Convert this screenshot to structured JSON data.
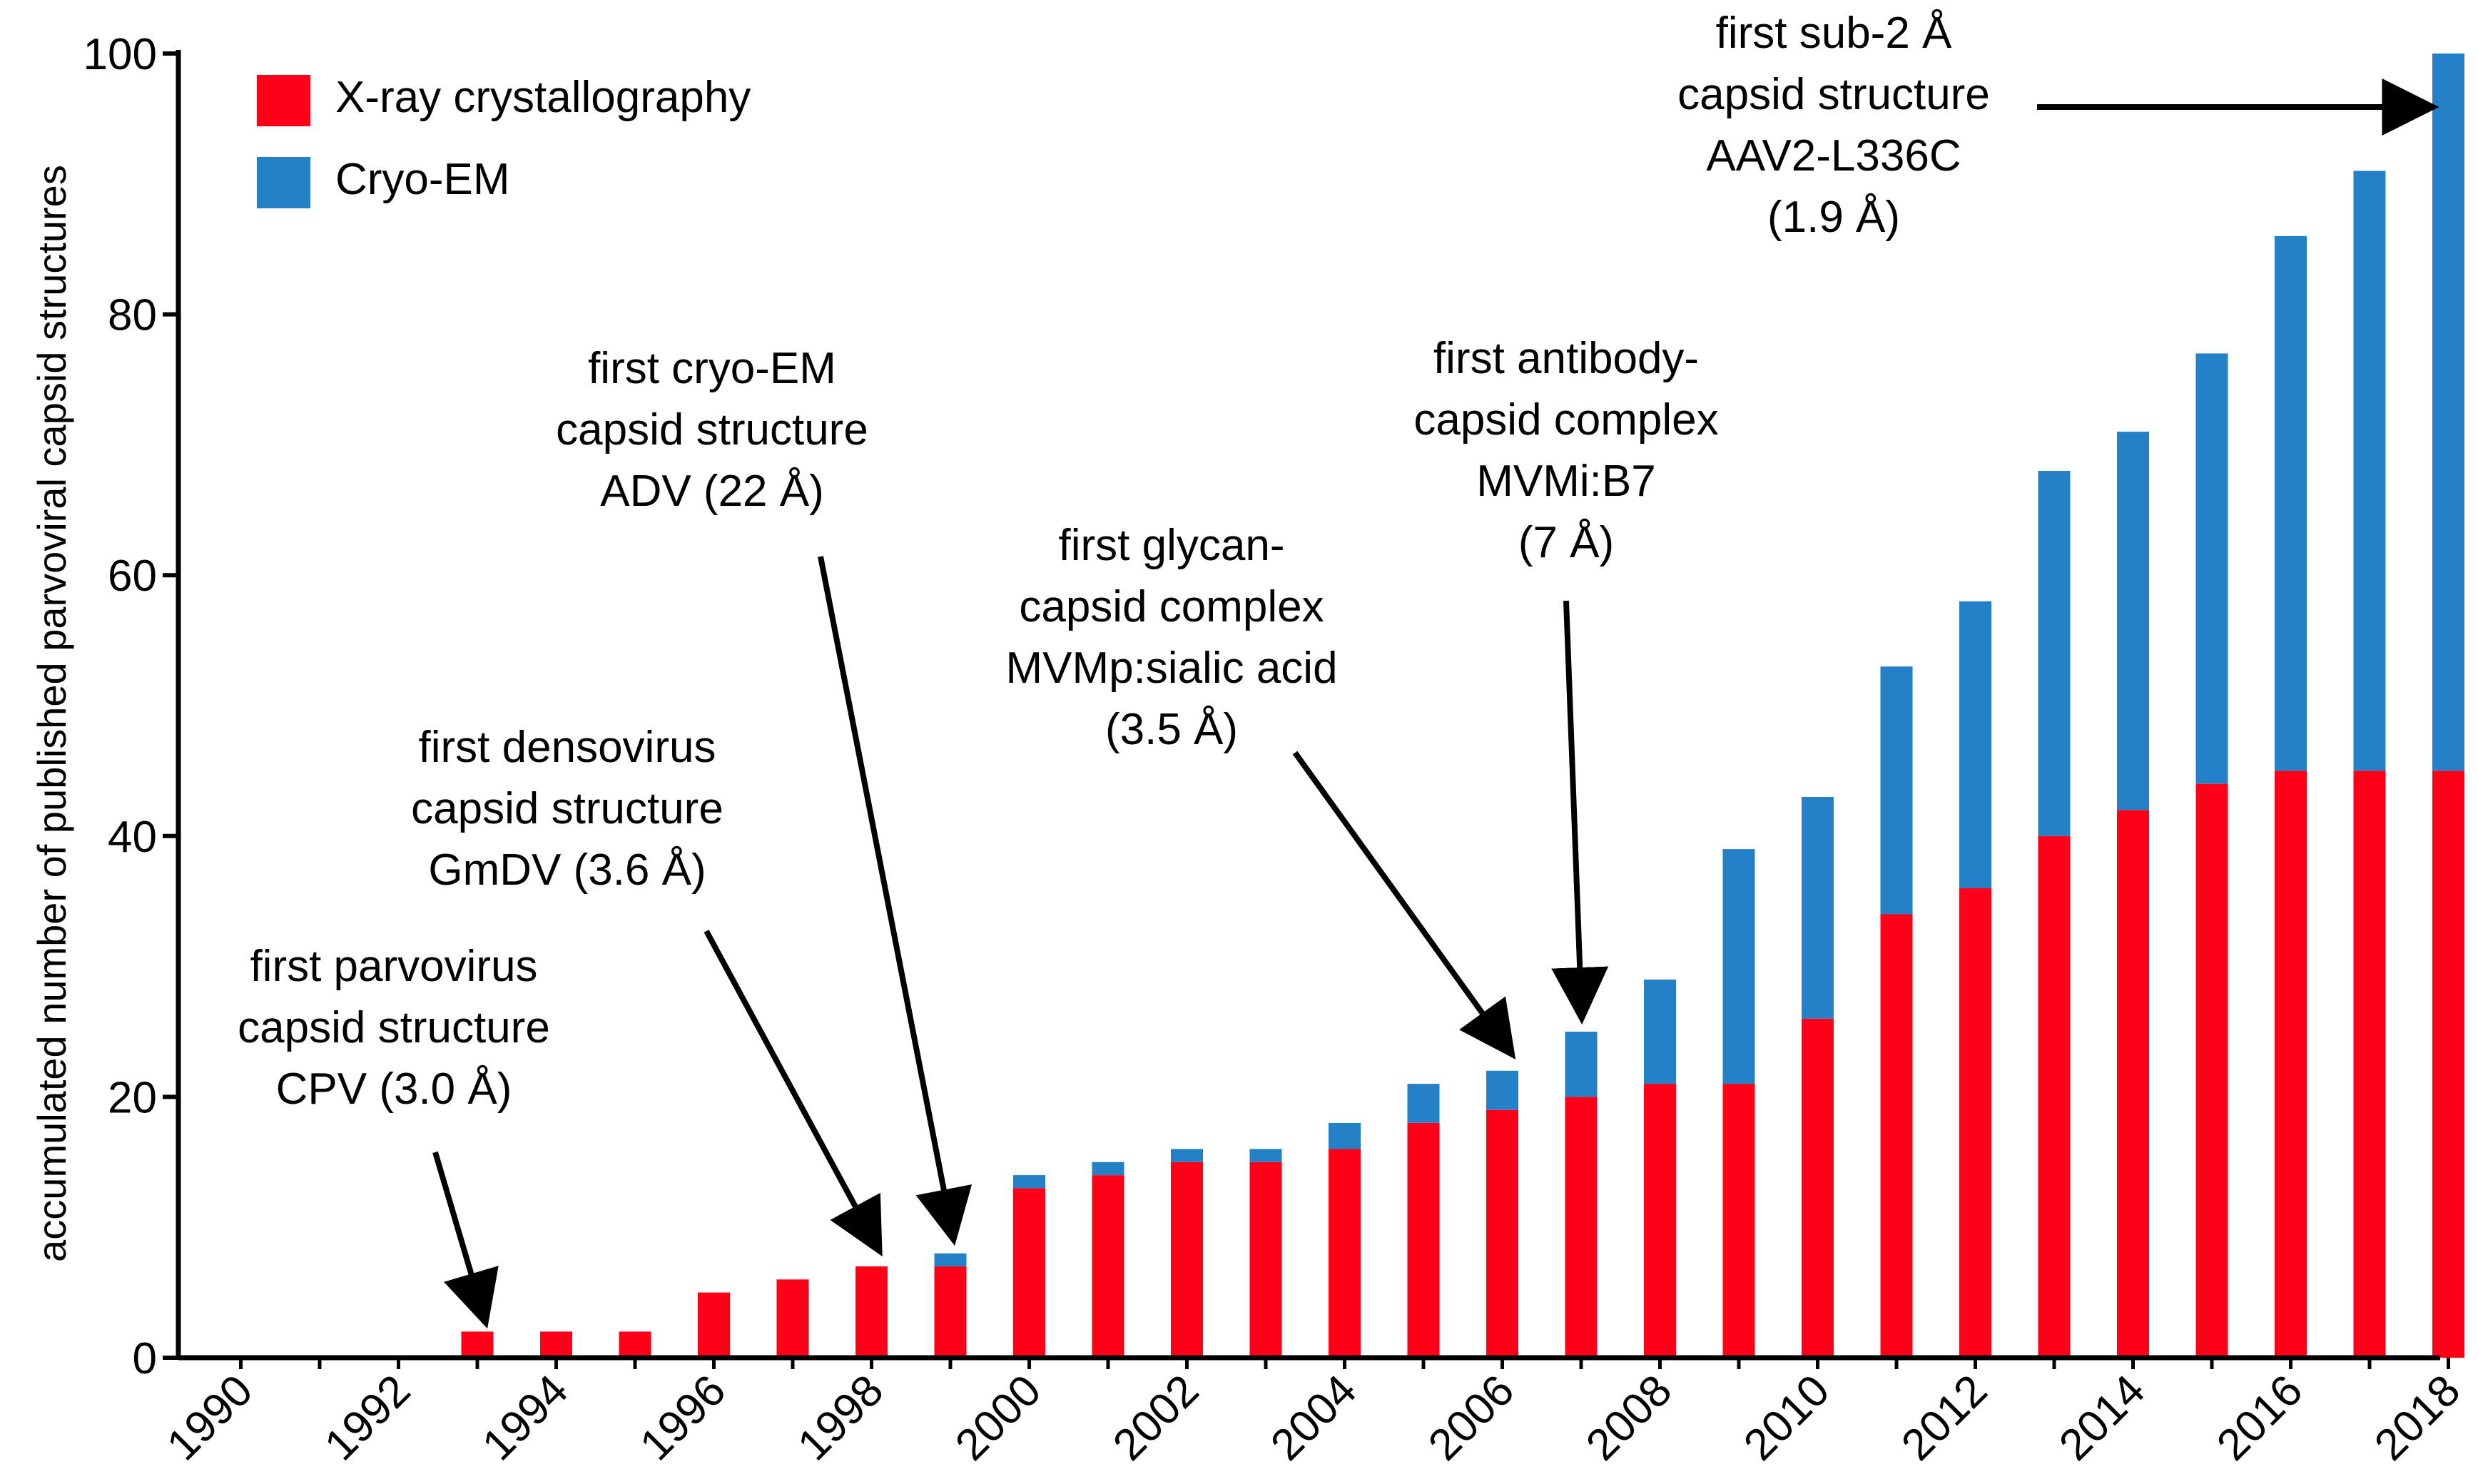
{
  "chart_data": {
    "type": "bar",
    "stacked": true,
    "title": "",
    "xlabel": "",
    "ylabel": "accumulated number of published parvoviral capsid structures",
    "ylim": [
      0,
      100
    ],
    "yticks": [
      0,
      20,
      40,
      60,
      80,
      100
    ],
    "x": [
      1990,
      1991,
      1992,
      1993,
      1994,
      1995,
      1996,
      1997,
      1998,
      1999,
      2000,
      2001,
      2002,
      2003,
      2004,
      2005,
      2006,
      2007,
      2008,
      2009,
      2010,
      2011,
      2012,
      2013,
      2014,
      2015,
      2016,
      2017,
      2018
    ],
    "xtick_labels": [
      "1990",
      "1992",
      "1994",
      "1996",
      "1998",
      "2000",
      "2002",
      "2004",
      "2006",
      "2008",
      "2010",
      "2012",
      "2014",
      "2016",
      "2018"
    ],
    "series": [
      {
        "name": "X-ray crystallography",
        "color": "#ff0019",
        "values": [
          0,
          0,
          0,
          2,
          2,
          2,
          5,
          6,
          7,
          7,
          13,
          14,
          15,
          15,
          16,
          18,
          19,
          20,
          21,
          21,
          26,
          34,
          36,
          40,
          42,
          44,
          45,
          45,
          45
        ]
      },
      {
        "name": "Cryo-EM",
        "color": "#2481c7",
        "values": [
          0,
          0,
          0,
          0,
          0,
          0,
          0,
          0,
          0,
          1,
          1,
          1,
          1,
          1,
          2,
          3,
          3,
          5,
          8,
          18,
          17,
          19,
          22,
          28,
          29,
          33,
          41,
          46,
          55
        ]
      }
    ],
    "legend_position": "top-left",
    "annotations": [
      {
        "id": "cpv",
        "lines": [
          "first parvovirus",
          "capsid structure",
          "CPV (3.0 Å)"
        ],
        "target_x": 1993,
        "target_y": 2
      },
      {
        "id": "gmdv",
        "lines": [
          "first densovirus",
          "capsid structure",
          "GmDV (3.6 Å)"
        ],
        "target_x": 1998,
        "target_y": 7
      },
      {
        "id": "adv",
        "lines": [
          "first cryo-EM",
          "capsid structure",
          "ADV (22 Å)"
        ],
        "target_x": 1999,
        "target_y": 8
      },
      {
        "id": "mvmp",
        "lines": [
          "first glycan-",
          "capsid complex",
          "MVMp:sialic acid",
          "(3.5 Å)"
        ],
        "target_x": 2006,
        "target_y": 22
      },
      {
        "id": "mvmi",
        "lines": [
          "first antibody-",
          "capsid complex",
          "MVMi:B7",
          "(7 Å)"
        ],
        "target_x": 2007,
        "target_y": 25
      },
      {
        "id": "aav2",
        "lines": [
          "first sub-2 Å",
          "capsid structure",
          "AAV2-L336C",
          "(1.9 Å)"
        ],
        "target_x": 2018,
        "target_y": 96
      }
    ]
  }
}
